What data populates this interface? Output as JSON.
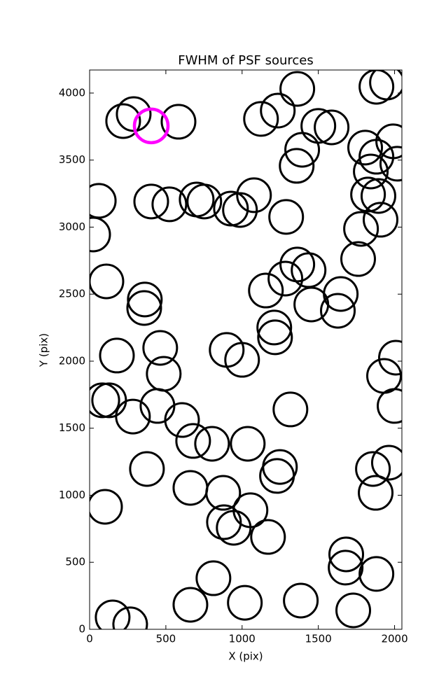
{
  "chart_data": {
    "type": "scatter",
    "title": "FWHM of PSF sources",
    "xlabel": "X (pix)",
    "ylabel": "Y (pix)",
    "xlim": [
      0,
      2048
    ],
    "ylim": [
      0,
      4172
    ],
    "xticks": [
      0,
      500,
      1000,
      1500,
      2000
    ],
    "yticks": [
      0,
      500,
      1000,
      1500,
      2000,
      2500,
      3000,
      3500,
      4000
    ],
    "grid": false,
    "series": [
      {
        "color": "#000000",
        "x": [
          220,
          289,
          583,
          1362,
          1124,
          1234,
          1500,
          1587,
          1881,
          1950,
          1394,
          1358,
          1807,
          1881,
          1991,
          2018,
          1844,
          1826,
          1894,
          1908,
          1780,
          1761,
          1362,
          1436,
          1284,
          1156,
          1647,
          1628,
          1454,
          1211,
          1216,
          60,
          404,
          523,
          702,
          752,
          927,
          986,
          1078,
          1289,
          23,
          110,
          362,
          358,
          179,
          463,
          486,
          899,
          1000,
          2009,
          1931,
          2000,
          83,
          128,
          445,
          284,
          606,
          679,
          803,
          1037,
          1317,
          376,
          101,
          661,
          876,
          1248,
          1229,
          1055,
          1858,
          1963,
          1876,
          881,
          945,
          1170,
          1683,
          1679,
          812,
          1881,
          661,
          1018,
          1385,
          1729,
          151,
          266
        ],
        "y": [
          3791,
          3843,
          3786,
          4031,
          3807,
          3869,
          3755,
          3744,
          4047,
          4078,
          3577,
          3457,
          3593,
          3525,
          3640,
          3473,
          3415,
          3243,
          3232,
          3055,
          2987,
          2762,
          2721,
          2679,
          2616,
          2527,
          2501,
          2376,
          2423,
          2251,
          2178,
          3196,
          3191,
          3170,
          3206,
          3191,
          3138,
          3128,
          3238,
          3076,
          2945,
          2595,
          2460,
          2397,
          2042,
          2099,
          1906,
          2084,
          2010,
          2026,
          1890,
          1666,
          1708,
          1708,
          1666,
          1587,
          1561,
          1405,
          1384,
          1384,
          1640,
          1196,
          914,
          1055,
          1018,
          1211,
          1144,
          888,
          1196,
          1243,
          1018,
          799,
          757,
          689,
          559,
          460,
          381,
          413,
          183,
          198,
          214,
          141,
          89,
          37
        ]
      },
      {
        "color": "#ff00ff",
        "x": [
          404
        ],
        "y": [
          3755
        ]
      }
    ]
  }
}
